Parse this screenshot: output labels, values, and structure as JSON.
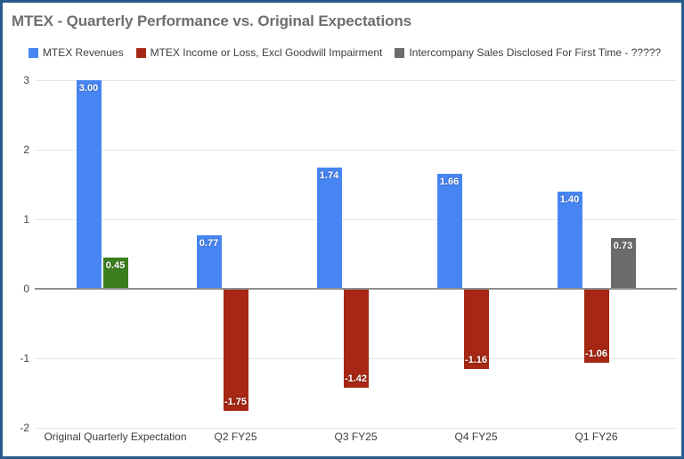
{
  "page": {
    "border_color": "#2a5a8b",
    "background": "#ffffff"
  },
  "chart_data": {
    "type": "bar",
    "title": "MTEX - Quarterly Performance vs. Original Expectations",
    "categories": [
      "Original Quarterly Expectation",
      "Q2 FY25",
      "Q3 FY25",
      "Q4 FY25",
      "Q1 FY26"
    ],
    "series": [
      {
        "name": "MTEX Revenues",
        "color": "#4785f2",
        "values": [
          3.0,
          0.77,
          1.74,
          1.66,
          1.4
        ]
      },
      {
        "name": "MTEX Income or Loss, Excl Goodwill Impairment",
        "color": "#a52714",
        "values": [
          0.45,
          -1.75,
          -1.42,
          -1.16,
          -1.06
        ],
        "point_colors": [
          "#3b7d1e",
          null,
          null,
          null,
          null
        ]
      },
      {
        "name": "Intercompany Sales Disclosed For First Time - ?????",
        "color": "#6b6b6b",
        "values": [
          null,
          null,
          null,
          null,
          0.73
        ]
      }
    ],
    "y_ticks": [
      3,
      2,
      1,
      0,
      -1,
      -2
    ],
    "ylim": [
      -2,
      3
    ],
    "grid": true,
    "legend_position": "top",
    "data_labels": "2dp"
  }
}
